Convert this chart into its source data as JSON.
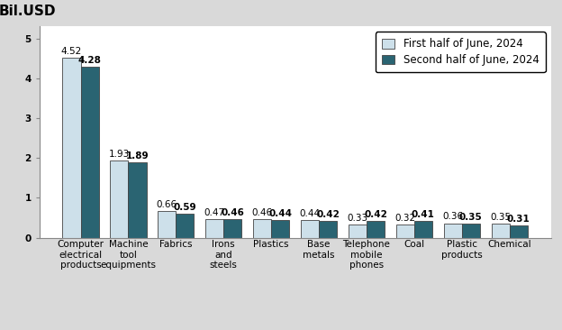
{
  "categories": [
    "Computer\nelectrical\nproducts",
    "Machine\ntool\nequipments",
    "Fabrics",
    "Irons\nand\nsteels",
    "Plastics",
    "Base\nmetals",
    "Telephone\nmobile\nphones",
    "Coal",
    "Plastic\nproducts",
    "Chemical"
  ],
  "first_half": [
    4.52,
    1.93,
    0.66,
    0.47,
    0.46,
    0.44,
    0.33,
    0.32,
    0.36,
    0.35
  ],
  "second_half": [
    4.28,
    1.89,
    0.59,
    0.46,
    0.44,
    0.42,
    0.42,
    0.41,
    0.35,
    0.31
  ],
  "color_first": "#cde0ea",
  "color_second": "#2a6472",
  "bg_color": "#d9d9d9",
  "plot_bg_color": "#ffffff",
  "ylabel": "Bil.USD",
  "ylim": [
    0,
    5.3
  ],
  "yticks": [
    0,
    1,
    2,
    3,
    4,
    5
  ],
  "legend_first": "First half of June, 2024",
  "legend_second": "Second half of June, 2024",
  "bar_width": 0.38,
  "label_fontsize": 7.5,
  "tick_fontsize": 7.5,
  "ylabel_fontsize": 11,
  "legend_fontsize": 8.5
}
